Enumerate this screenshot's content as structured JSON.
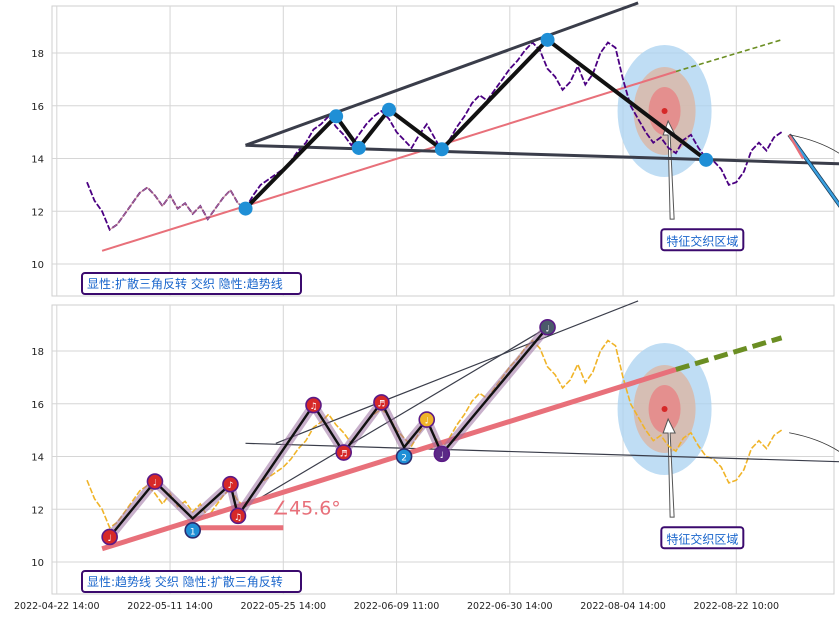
{
  "chart_data": [
    {
      "type": "line",
      "panel": "top",
      "ylim": [
        8.8,
        19.8
      ],
      "yticks": [
        10,
        12,
        14,
        16,
        18
      ],
      "price": [
        [
          0,
          13.1
        ],
        [
          1,
          12.4
        ],
        [
          2,
          12.0
        ],
        [
          3,
          11.3
        ],
        [
          4,
          11.5
        ],
        [
          5,
          11.9
        ],
        [
          6,
          12.3
        ],
        [
          7,
          12.7
        ],
        [
          8,
          12.9
        ],
        [
          9,
          12.6
        ],
        [
          10,
          12.2
        ],
        [
          11,
          12.6
        ],
        [
          12,
          12.1
        ],
        [
          13,
          12.3
        ],
        [
          14,
          11.9
        ],
        [
          15,
          12.2
        ],
        [
          16,
          11.7
        ],
        [
          17,
          12.1
        ],
        [
          18,
          12.5
        ],
        [
          19,
          12.8
        ],
        [
          20,
          12.3
        ],
        [
          21,
          12.1
        ],
        [
          22,
          12.6
        ],
        [
          23,
          13.0
        ],
        [
          24,
          13.2
        ],
        [
          25,
          13.4
        ],
        [
          26,
          13.6
        ],
        [
          27,
          13.9
        ],
        [
          28,
          14.3
        ],
        [
          29,
          14.6
        ],
        [
          30,
          15.1
        ],
        [
          31,
          15.3
        ],
        [
          32,
          15.6
        ],
        [
          33,
          15.2
        ],
        [
          34,
          14.9
        ],
        [
          35,
          14.5
        ],
        [
          36,
          14.9
        ],
        [
          37,
          15.3
        ],
        [
          38,
          15.6
        ],
        [
          39,
          15.8
        ],
        [
          40,
          15.5
        ],
        [
          41,
          15.0
        ],
        [
          42,
          14.7
        ],
        [
          43,
          14.4
        ],
        [
          44,
          14.9
        ],
        [
          45,
          15.3
        ],
        [
          46,
          14.8
        ],
        [
          47,
          14.3
        ],
        [
          48,
          14.7
        ],
        [
          49,
          15.2
        ],
        [
          50,
          15.6
        ],
        [
          51,
          16.1
        ],
        [
          52,
          16.4
        ],
        [
          53,
          16.2
        ],
        [
          54,
          16.6
        ],
        [
          55,
          17.0
        ],
        [
          56,
          17.4
        ],
        [
          57,
          17.7
        ],
        [
          58,
          18.1
        ],
        [
          59,
          18.4
        ],
        [
          60,
          18.1
        ],
        [
          61,
          17.4
        ],
        [
          62,
          17.1
        ],
        [
          63,
          16.6
        ],
        [
          64,
          16.9
        ],
        [
          65,
          17.5
        ],
        [
          66,
          16.8
        ],
        [
          67,
          17.2
        ],
        [
          68,
          18.0
        ],
        [
          69,
          18.4
        ],
        [
          70,
          18.2
        ],
        [
          71,
          17.0
        ],
        [
          72,
          16.0
        ],
        [
          73,
          15.5
        ],
        [
          74,
          15.0
        ],
        [
          75,
          14.6
        ],
        [
          76,
          14.8
        ],
        [
          77,
          14.4
        ],
        [
          78,
          14.2
        ],
        [
          79,
          14.7
        ],
        [
          80,
          14.9
        ],
        [
          81,
          14.4
        ],
        [
          82,
          14.0
        ],
        [
          83,
          13.9
        ],
        [
          84,
          13.6
        ],
        [
          85,
          13.0
        ],
        [
          86,
          13.1
        ],
        [
          87,
          13.5
        ],
        [
          88,
          14.3
        ],
        [
          89,
          14.6
        ],
        [
          90,
          14.3
        ],
        [
          91,
          14.8
        ],
        [
          92,
          15.0
        ]
      ],
      "pattern_vertices": [
        [
          21,
          12.1
        ],
        [
          33,
          15.6
        ],
        [
          36,
          14.4
        ],
        [
          40,
          15.85
        ],
        [
          47,
          14.35
        ],
        [
          61,
          18.5
        ],
        [
          82,
          13.95
        ]
      ],
      "upper_line": [
        [
          21,
          14.5
        ],
        [
          73,
          19.9
        ]
      ],
      "lower_line": [
        [
          21,
          14.5
        ],
        [
          100,
          13.8
        ]
      ],
      "trend_line": [
        [
          2,
          10.5
        ],
        [
          78,
          17.3
        ]
      ],
      "trend_ext": [
        [
          78,
          17.3
        ],
        [
          92,
          18.5
        ]
      ],
      "forecast_arrow": [
        [
          93,
          14.9
        ],
        [
          106,
          9.7
        ]
      ],
      "curve_arrow": [
        [
          93,
          14.9
        ],
        [
          106,
          9.7
        ]
      ],
      "feature_zone": {
        "x": 76.5,
        "y": 15.8,
        "label": "特征交织区域",
        "label_x": 81.5,
        "label_y": 10.9,
        "arrow_tail": [
          77.5,
          11.7
        ]
      },
      "legend_text": "显性:扩散三角反转 交织 隐性:趋势线"
    },
    {
      "type": "line",
      "panel": "bottom",
      "ylim": [
        8.8,
        19.8
      ],
      "yticks": [
        10,
        12,
        14,
        16,
        18
      ],
      "x_tick_labels": [
        "2022-04-22 14:00",
        "2022-05-11 14:00",
        "2022-05-25 14:00",
        "2022-06-09 11:00",
        "2022-06-30 14:00",
        "2022-08-04 14:00",
        "2022-08-22 10:00"
      ],
      "x_tick_positions": [
        -4,
        11,
        26,
        41,
        56,
        71,
        86
      ],
      "zigzag": [
        [
          3,
          10.95
        ],
        [
          9,
          13.05
        ],
        [
          14,
          11.65
        ],
        [
          19,
          12.95
        ],
        [
          20,
          11.75
        ],
        [
          30,
          15.95
        ],
        [
          34,
          14.15
        ],
        [
          39,
          16.05
        ],
        [
          42,
          14.35
        ],
        [
          45,
          15.4
        ],
        [
          47,
          14.1
        ],
        [
          61,
          18.9
        ]
      ],
      "zigzag_labels": [
        "♩",
        "♩",
        "",
        "♪",
        "♫",
        "♫",
        "♬",
        "♬",
        "",
        "♩",
        "♩",
        "♩"
      ],
      "blue_markers": [
        [
          14,
          11.2,
          "1"
        ],
        [
          42,
          14.0,
          "2"
        ]
      ],
      "angle_label": "∠45.6°",
      "angle_pos": [
        24.5,
        11.8
      ],
      "angle_base": [
        [
          14,
          11.3
        ],
        [
          26,
          11.3
        ]
      ],
      "trend_line": [
        [
          2,
          10.5
        ],
        [
          78,
          17.3
        ]
      ],
      "trend_ext": [
        [
          78,
          17.3
        ],
        [
          92,
          18.5
        ]
      ],
      "channel_upper": [
        [
          21,
          12.1
        ],
        [
          61,
          18.9
        ]
      ],
      "channel_upper2": [
        [
          25,
          14.5
        ],
        [
          73,
          19.9
        ]
      ],
      "lower_line": [
        [
          21,
          14.5
        ],
        [
          100,
          13.8
        ]
      ],
      "feature_zone": {
        "x": 76.5,
        "y": 15.8,
        "label": "特征交织区域",
        "label_x": 81.5,
        "label_y": 10.9,
        "arrow_tail": [
          77.5,
          11.7
        ]
      },
      "curve_arrow": [
        [
          93,
          14.9
        ],
        [
          106,
          9.6
        ]
      ],
      "legend_text": "显性:趋势线 交织 隐性:扩散三角反转"
    }
  ],
  "colors": {
    "price_top": "#4b0082",
    "price_bottom": "#f0b429",
    "pattern": "#111111",
    "dark_line": "#3a3d4a",
    "trend": "#e8707a",
    "olive": "#6b8e23",
    "marker_blue": "#1f8fd6",
    "marker_red": "#d62828",
    "legend_border": "#3b0a6e",
    "legend_text": "#1a66cc",
    "forecast_blue": "#3aa0e0"
  }
}
